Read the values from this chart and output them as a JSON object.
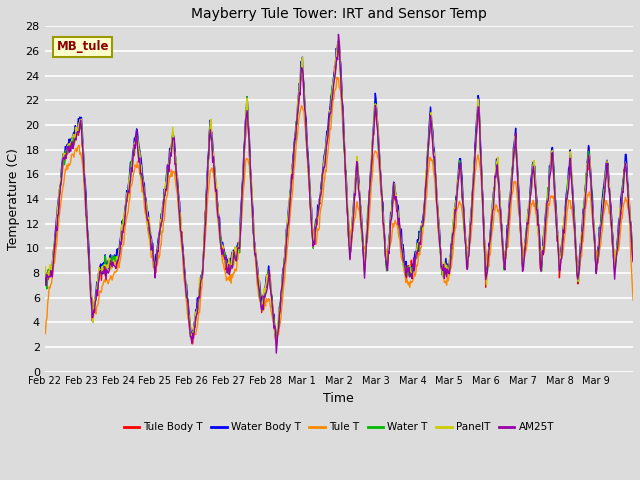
{
  "title": "Mayberry Tule Tower: IRT and Sensor Temp",
  "xlabel": "Time",
  "ylabel": "Temperature (C)",
  "ylim": [
    0,
    28
  ],
  "background_color": "#dcdcdc",
  "grid_color": "#f0f0f0",
  "series": {
    "Tule Body T": {
      "color": "#ff0000",
      "lw": 1.0
    },
    "Water Body T": {
      "color": "#0000ff",
      "lw": 1.0
    },
    "Tule T": {
      "color": "#ff8800",
      "lw": 1.0
    },
    "Water T": {
      "color": "#00bb00",
      "lw": 1.0
    },
    "PanelT": {
      "color": "#cccc00",
      "lw": 1.0
    },
    "AM25T": {
      "color": "#9900aa",
      "lw": 1.0
    }
  },
  "xtick_labels": [
    "Feb 22",
    "Feb 23",
    "Feb 24",
    "Feb 25",
    "Feb 26",
    "Feb 27",
    "Feb 28",
    "Mar 1",
    "Mar 2",
    "Mar 3",
    "Mar 4",
    "Mar 5",
    "Mar 6",
    "Mar 7",
    "Mar 8",
    "Mar 9"
  ],
  "annotation": "MB_tule",
  "seed": 42
}
